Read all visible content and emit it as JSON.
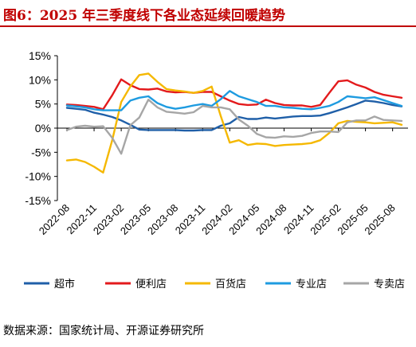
{
  "header": {
    "title": "图6：2025 年三季度线下各业态延续回暖趋势"
  },
  "footer": {
    "source": "数据来源：国家统计局、开源证券研究所"
  },
  "chart_data": {
    "type": "line",
    "title": "",
    "xlabel": "",
    "ylabel": "",
    "ylim": [
      -15,
      15
    ],
    "y_ticks": [
      "15%",
      "10%",
      "5%",
      "0%",
      "-5%",
      "-10%",
      "-15%"
    ],
    "y_tick_values": [
      15,
      10,
      5,
      0,
      -5,
      -10,
      -15
    ],
    "x_ticks": [
      "2022-08",
      "2022-11",
      "2023-02",
      "2023-05",
      "2023-08",
      "2023-11",
      "2024-02",
      "2024-05",
      "2024-08",
      "2024-11",
      "2025-02",
      "2025-05",
      "2025-08"
    ],
    "x": [
      "2022-08",
      "2022-09",
      "2022-10",
      "2022-11",
      "2022-12",
      "2023-01",
      "2023-02",
      "2023-03",
      "2023-04",
      "2023-05",
      "2023-06",
      "2023-07",
      "2023-08",
      "2023-09",
      "2023-10",
      "2023-11",
      "2023-12",
      "2024-01",
      "2024-02",
      "2024-03",
      "2024-04",
      "2024-05",
      "2024-06",
      "2024-07",
      "2024-08",
      "2024-09",
      "2024-10",
      "2024-11",
      "2024-12",
      "2025-01",
      "2025-02",
      "2025-03",
      "2025-04",
      "2025-05",
      "2025-06",
      "2025-07",
      "2025-08",
      "2025-09"
    ],
    "grid": false,
    "legend_position": "bottom",
    "series": [
      {
        "name": "超市",
        "color": "#1f5fa8",
        "values": [
          4.2,
          4.0,
          3.8,
          3.2,
          2.8,
          2.3,
          1.6,
          0.7,
          -0.3,
          -0.4,
          -0.4,
          -0.4,
          -0.4,
          -0.5,
          -0.5,
          -0.4,
          -0.4,
          0.5,
          1.0,
          2.3,
          1.9,
          1.9,
          2.2,
          2.0,
          2.2,
          2.4,
          2.5,
          2.5,
          2.6,
          3.1,
          3.7,
          4.3,
          5.0,
          5.7,
          5.5,
          5.2,
          4.8,
          4.5
        ]
      },
      {
        "name": "便利店",
        "color": "#e31a1c",
        "values": [
          4.9,
          4.8,
          4.6,
          4.4,
          3.9,
          6.8,
          10.1,
          8.9,
          8.1,
          8.0,
          8.2,
          7.6,
          7.4,
          7.5,
          7.3,
          7.5,
          7.5,
          6.6,
          5.7,
          5.0,
          4.8,
          4.9,
          5.9,
          5.2,
          4.8,
          4.7,
          4.7,
          4.4,
          4.8,
          7.3,
          9.7,
          9.9,
          9.0,
          8.4,
          7.5,
          6.9,
          6.6,
          6.3
        ]
      },
      {
        "name": "百货店",
        "color": "#f5b800",
        "values": [
          -6.7,
          -6.5,
          -7.0,
          -8.0,
          -9.2,
          -2.5,
          5.4,
          8.6,
          11.0,
          11.3,
          9.6,
          8.1,
          7.8,
          7.6,
          7.3,
          7.7,
          8.6,
          2.5,
          -3.0,
          -2.5,
          -3.5,
          -3.2,
          -3.3,
          -3.7,
          -3.5,
          -3.4,
          -3.3,
          -3.1,
          -2.5,
          -1.0,
          1.0,
          1.5,
          1.3,
          1.2,
          1.0,
          1.1,
          1.2,
          0.7
        ]
      },
      {
        "name": "专业店",
        "color": "#1e9be0",
        "values": [
          4.7,
          4.5,
          4.3,
          3.9,
          3.7,
          3.7,
          3.7,
          5.7,
          6.3,
          6.6,
          5.2,
          4.4,
          4.0,
          4.3,
          4.7,
          5.0,
          4.6,
          6.0,
          7.7,
          6.6,
          6.0,
          5.4,
          4.6,
          4.6,
          4.3,
          4.2,
          4.0,
          3.9,
          4.2,
          4.6,
          5.4,
          6.6,
          6.4,
          6.2,
          6.4,
          5.8,
          5.2,
          4.6
        ]
      },
      {
        "name": "专卖店",
        "color": "#a6a6a6",
        "values": [
          -0.4,
          0.3,
          0.5,
          0.3,
          0.4,
          -2.0,
          -5.3,
          0.6,
          2.2,
          5.9,
          4.3,
          3.4,
          3.2,
          3.0,
          3.3,
          4.6,
          4.3,
          4.3,
          3.9,
          1.8,
          0.5,
          -1.2,
          -1.9,
          -2.0,
          -1.7,
          -1.8,
          -1.6,
          -1.0,
          -0.7,
          -0.7,
          -0.8,
          1.2,
          1.6,
          1.6,
          2.4,
          1.7,
          1.6,
          1.5
        ]
      }
    ]
  }
}
